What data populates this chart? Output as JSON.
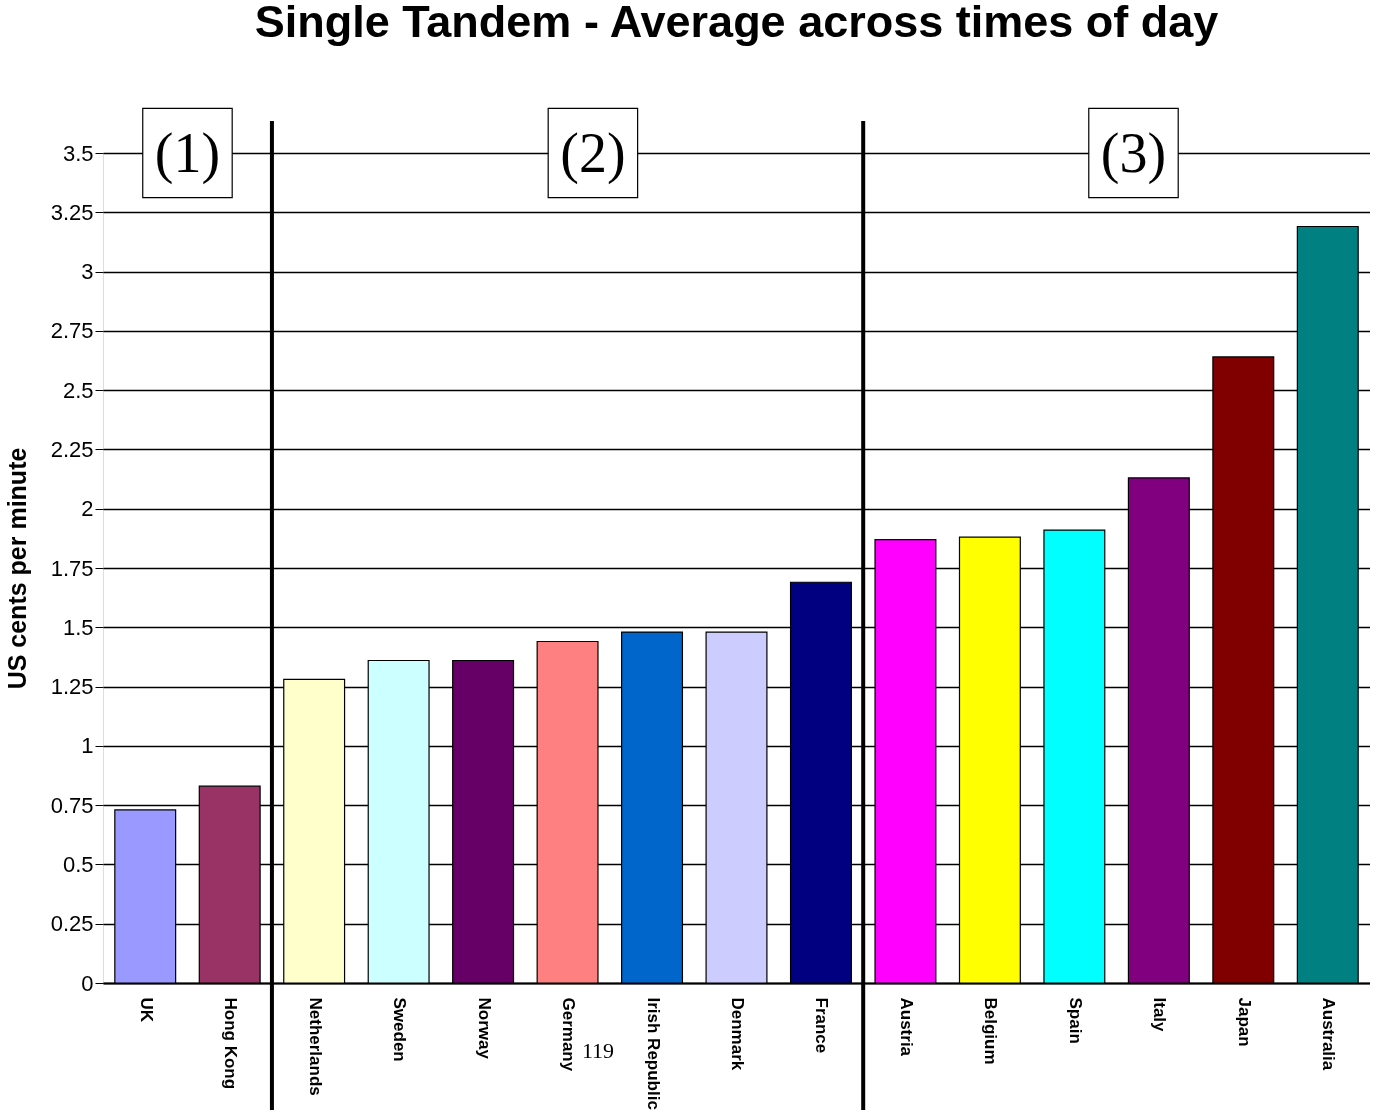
{
  "chart_data": {
    "type": "bar",
    "title": "Single Tandem - Average across times of day",
    "ylabel": "US cents per minute",
    "categories": [
      "UK",
      "Hong Kong",
      "Netherlands",
      "Sweden",
      "Norway",
      "Germany",
      "Irish Republic",
      "Denmark",
      "France",
      "Austria",
      "Belgium",
      "Spain",
      "Italy",
      "Japan",
      "Australia"
    ],
    "values": [
      0.73,
      0.83,
      1.28,
      1.36,
      1.36,
      1.44,
      1.48,
      1.48,
      1.69,
      1.87,
      1.88,
      1.91,
      2.13,
      2.64,
      3.19
    ],
    "colors": [
      "#9999ff",
      "#993366",
      "#ffffcc",
      "#ccffff",
      "#660066",
      "#ff8080",
      "#0066cc",
      "#ccccff",
      "#000080",
      "#ff00ff",
      "#ffff00",
      "#00ffff",
      "#800080",
      "#800000",
      "#008080"
    ],
    "ylim": [
      0,
      3.5
    ],
    "yticks": [
      0,
      0.25,
      0.5,
      0.75,
      1,
      1.25,
      1.5,
      1.75,
      2,
      2.25,
      2.5,
      2.75,
      3,
      3.25,
      3.5
    ],
    "grid": "y",
    "annotations": [
      "(1)",
      "(2)",
      "(3)",
      "119"
    ]
  }
}
